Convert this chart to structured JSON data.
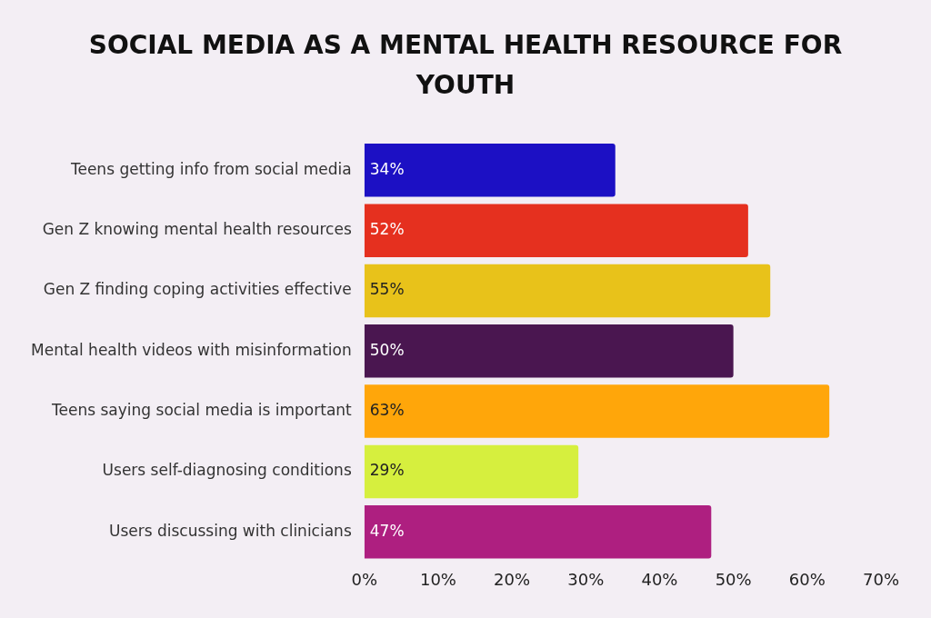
{
  "chart_data": {
    "type": "bar",
    "orientation": "horizontal",
    "title": "SOCIAL MEDIA AS A MENTAL HEALTH RESOURCE FOR YOUTH",
    "categories": [
      "Teens getting info from social media",
      "Gen Z knowing mental health resources",
      "Gen Z finding coping activities effective",
      "Mental health videos with misinformation",
      "Teens saying social media is important",
      "Users self-diagnosing conditions",
      "Users discussing with clinicians"
    ],
    "values": [
      34,
      52,
      55,
      50,
      63,
      29,
      47
    ],
    "colors": [
      "#1c10c4",
      "#e5301f",
      "#e8c21a",
      "#4a1650",
      "#ffa60a",
      "#d6ef3e",
      "#ae1f80"
    ],
    "xlim": [
      0,
      70
    ],
    "xticks": [
      {
        "value": 0,
        "label": "0%"
      },
      {
        "value": 10,
        "label": "10%"
      },
      {
        "value": 20,
        "label": "20%"
      },
      {
        "value": 30,
        "label": "30%"
      },
      {
        "value": 40,
        "label": "40%"
      },
      {
        "value": 50,
        "label": "50%"
      },
      {
        "value": 60,
        "label": "60%"
      },
      {
        "value": 70,
        "label": "70%"
      }
    ],
    "value_labels": [
      "34%",
      "52%",
      "55%",
      "50%",
      "63%",
      "29%",
      "47%"
    ],
    "grid": false,
    "legend": false
  }
}
